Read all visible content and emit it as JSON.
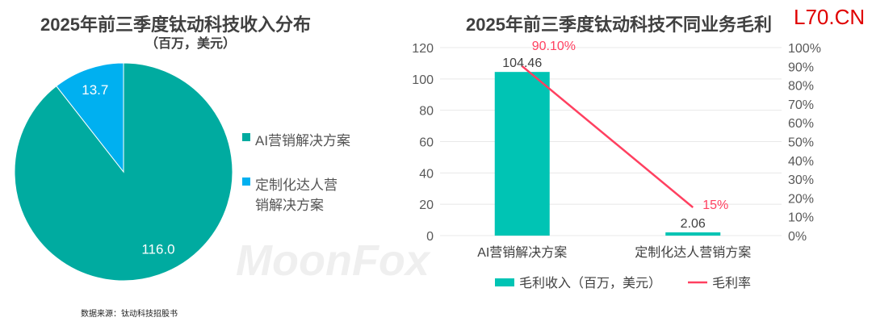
{
  "colors": {
    "teal": "#00ABA0",
    "blue": "#00B0F0",
    "bar": "#00C4B4",
    "line": "#FF4060"
  },
  "chart_data": [
    {
      "type": "pie",
      "title": "2025年前三季度钛动科技收入分布",
      "subtitle": "（百万，美元）",
      "slices": [
        {
          "label": "AI营销解决方案",
          "value": 116.0,
          "display": "116.0"
        },
        {
          "label": "定制化达人营销解决方案",
          "value": 13.7,
          "display": "13.7"
        }
      ],
      "legend": [
        "AI营销解决方案",
        "定制化达人营销解决方案"
      ],
      "legend_placement": "right"
    },
    {
      "type": "bar",
      "title": "2025年前三季度钛动科技不同业务毛利",
      "categories": [
        "AI营销解决方案",
        "定制化达人营销方案"
      ],
      "series": [
        {
          "name": "毛利收入（百万，美元）",
          "type": "bar",
          "values": [
            104.46,
            2.06
          ],
          "labels": [
            "104.46",
            "2.06"
          ]
        },
        {
          "name": "毛利率",
          "type": "line",
          "values": [
            90.1,
            15
          ],
          "labels": [
            "90.10%",
            "15%"
          ]
        }
      ],
      "ylim": [
        0,
        120
      ],
      "yticks": [
        "0",
        "20",
        "40",
        "60",
        "80",
        "100",
        "120"
      ],
      "y2lim": [
        0,
        100
      ],
      "y2ticks": [
        "0%",
        "10%",
        "20%",
        "30%",
        "40%",
        "50%",
        "60%",
        "70%",
        "80%",
        "90%",
        "100%"
      ],
      "legend_placement": "bottom"
    }
  ],
  "source": "数据来源：钛动科技招股书",
  "watermark": "MoonFox",
  "overlay_text": "L70.CN"
}
